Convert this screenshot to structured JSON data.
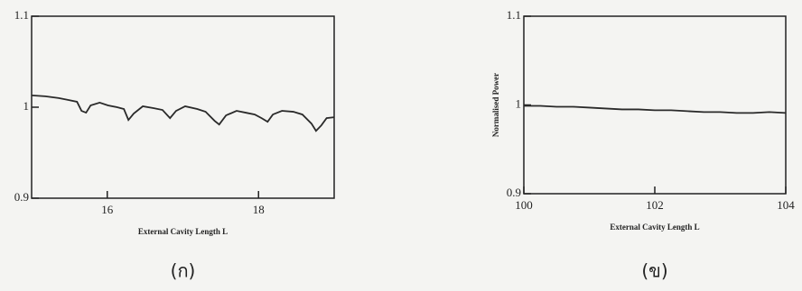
{
  "chart_data": [
    {
      "type": "line",
      "x_label": "External Cavity Length L",
      "caption": "(ก)",
      "x": [
        15.0,
        15.18,
        15.36,
        15.48,
        15.6,
        15.66,
        15.72,
        15.78,
        15.9,
        16.01,
        16.13,
        16.22,
        16.28,
        16.35,
        16.47,
        16.61,
        16.73,
        16.83,
        16.91,
        17.03,
        17.19,
        17.3,
        17.42,
        17.48,
        17.57,
        17.71,
        17.83,
        17.95,
        18.04,
        18.12,
        18.19,
        18.31,
        18.46,
        18.58,
        18.7,
        18.76,
        18.83,
        18.9,
        19.0
      ],
      "series": [
        {
          "color": "#2a2a2a",
          "values": [
            1.013,
            1.012,
            1.01,
            1.008,
            1.006,
            0.996,
            0.994,
            1.002,
            1.005,
            1.002,
            1.0,
            0.998,
            0.986,
            0.993,
            1.001,
            0.999,
            0.997,
            0.988,
            0.996,
            1.001,
            0.998,
            0.995,
            0.985,
            0.981,
            0.991,
            0.996,
            0.994,
            0.992,
            0.988,
            0.984,
            0.992,
            0.996,
            0.995,
            0.992,
            0.982,
            0.974,
            0.98,
            0.988,
            0.989
          ]
        }
      ],
      "xlim": [
        15,
        19
      ],
      "xticks": [
        16,
        18
      ],
      "ylim": [
        0.9,
        1.1
      ],
      "yticks": [
        0.9,
        1,
        1.1
      ]
    },
    {
      "type": "line",
      "x_label": "External Cavity Length L",
      "y_label": "Normalised Power",
      "caption": "(ข)",
      "x": [
        100,
        100.25,
        100.5,
        100.75,
        101,
        101.25,
        101.5,
        101.75,
        102,
        102.25,
        102.5,
        102.75,
        103,
        103.25,
        103.5,
        103.75,
        104
      ],
      "series": [
        {
          "color": "#2a2a2a",
          "values": [
            0.999,
            0.999,
            0.998,
            0.998,
            0.997,
            0.996,
            0.995,
            0.995,
            0.994,
            0.994,
            0.993,
            0.992,
            0.992,
            0.991,
            0.991,
            0.992,
            0.991
          ]
        }
      ],
      "xlim": [
        100,
        104
      ],
      "xticks": [
        100,
        102,
        104
      ],
      "ylim": [
        0.9,
        1.1
      ],
      "yticks": [
        0.9,
        1,
        1.1
      ]
    }
  ]
}
